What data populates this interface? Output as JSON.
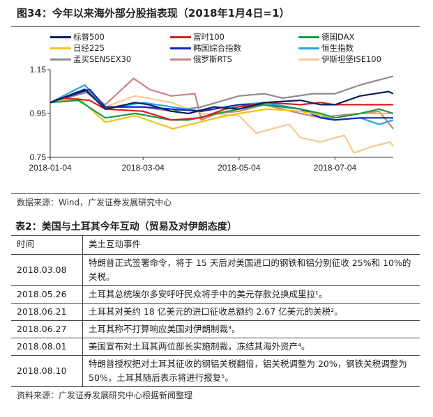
{
  "figure": {
    "title": "图34：今年以来海外部分股指表现（2018年1月4日=1）",
    "source": "数据来源：Wind，广发证券发展研究中心"
  },
  "chart_data": {
    "type": "line",
    "title": "今年以来海外部分股指表现（2018年1月4日=1）",
    "xlabel": "",
    "ylabel": "",
    "x_ticks": [
      "2018-01-04",
      "2018-03-04",
      "2018-05-04",
      "2018-07-04"
    ],
    "y_ticks": [
      "0.75",
      "0.95",
      "1.15"
    ],
    "ylim": [
      0.75,
      1.15
    ],
    "xlim": [
      "2018-01-04",
      "2018-08-10"
    ],
    "grid": false,
    "legend_position": "top",
    "series": [
      {
        "name": "标普500",
        "color": "#0b1f5c",
        "points": [
          [
            "2018-01-04",
            1.0
          ],
          [
            "2018-01-26",
            1.06
          ],
          [
            "2018-02-08",
            0.97
          ],
          [
            "2018-02-27",
            1.0
          ],
          [
            "2018-03-08",
            0.99
          ],
          [
            "2018-03-22",
            0.96
          ],
          [
            "2018-04-02",
            0.95
          ],
          [
            "2018-04-18",
            0.98
          ],
          [
            "2018-05-04",
            0.97
          ],
          [
            "2018-05-20",
            1.0
          ],
          [
            "2018-06-12",
            1.01
          ],
          [
            "2018-06-25",
            0.99
          ],
          [
            "2018-07-04",
            0.99
          ],
          [
            "2018-07-20",
            1.03
          ],
          [
            "2018-08-07",
            1.05
          ],
          [
            "2018-08-10",
            1.04
          ]
        ]
      },
      {
        "name": "富时100",
        "color": "#e01b1b",
        "points": [
          [
            "2018-01-04",
            1.0
          ],
          [
            "2018-01-12",
            1.02
          ],
          [
            "2018-01-29",
            1.01
          ],
          [
            "2018-02-08",
            0.97
          ],
          [
            "2018-03-04",
            0.96
          ],
          [
            "2018-03-22",
            0.92
          ],
          [
            "2018-04-10",
            0.93
          ],
          [
            "2018-04-25",
            0.97
          ],
          [
            "2018-05-04",
            0.98
          ],
          [
            "2018-05-22",
            1.0
          ],
          [
            "2018-06-12",
            0.99
          ],
          [
            "2018-06-25",
            1.0
          ],
          [
            "2018-07-04",
            0.99
          ],
          [
            "2018-07-20",
            0.99
          ],
          [
            "2018-08-10",
            0.99
          ]
        ]
      },
      {
        "name": "德国DAX",
        "color": "#1a9a4a",
        "points": [
          [
            "2018-01-04",
            1.0
          ],
          [
            "2018-01-22",
            1.01
          ],
          [
            "2018-02-08",
            0.93
          ],
          [
            "2018-02-27",
            0.95
          ],
          [
            "2018-03-22",
            0.92
          ],
          [
            "2018-04-02",
            0.92
          ],
          [
            "2018-04-20",
            0.95
          ],
          [
            "2018-05-04",
            0.97
          ],
          [
            "2018-05-20",
            0.99
          ],
          [
            "2018-06-12",
            0.97
          ],
          [
            "2018-06-25",
            0.95
          ],
          [
            "2018-07-04",
            0.93
          ],
          [
            "2018-07-20",
            0.95
          ],
          [
            "2018-08-01",
            0.97
          ],
          [
            "2018-08-10",
            0.95
          ]
        ]
      },
      {
        "name": "日经225",
        "color": "#f2c318",
        "points": [
          [
            "2018-01-04",
            1.0
          ],
          [
            "2018-01-22",
            1.02
          ],
          [
            "2018-02-08",
            0.91
          ],
          [
            "2018-02-27",
            0.94
          ],
          [
            "2018-03-23",
            0.88
          ],
          [
            "2018-04-20",
            0.93
          ],
          [
            "2018-05-04",
            0.95
          ],
          [
            "2018-05-22",
            0.97
          ],
          [
            "2018-06-12",
            0.96
          ],
          [
            "2018-07-04",
            0.93
          ],
          [
            "2018-07-20",
            0.95
          ],
          [
            "2018-08-10",
            0.95
          ]
        ]
      },
      {
        "name": "韩国综合指数",
        "color": "#1326b8",
        "points": [
          [
            "2018-01-04",
            1.0
          ],
          [
            "2018-01-29",
            1.06
          ],
          [
            "2018-02-08",
            0.98
          ],
          [
            "2018-03-04",
            0.98
          ],
          [
            "2018-03-22",
            0.97
          ],
          [
            "2018-04-10",
            0.96
          ],
          [
            "2018-05-04",
            0.99
          ],
          [
            "2018-05-20",
            0.99
          ],
          [
            "2018-06-12",
            0.97
          ],
          [
            "2018-06-25",
            0.93
          ],
          [
            "2018-07-04",
            0.92
          ],
          [
            "2018-07-20",
            0.93
          ],
          [
            "2018-08-10",
            0.93
          ]
        ]
      },
      {
        "name": "恒生指数",
        "color": "#1ea6e8",
        "points": [
          [
            "2018-01-04",
            1.0
          ],
          [
            "2018-01-26",
            1.08
          ],
          [
            "2018-02-08",
            0.97
          ],
          [
            "2018-03-04",
            1.0
          ],
          [
            "2018-03-22",
            0.98
          ],
          [
            "2018-04-10",
            0.96
          ],
          [
            "2018-05-04",
            0.99
          ],
          [
            "2018-05-20",
            1.0
          ],
          [
            "2018-06-12",
            0.97
          ],
          [
            "2018-06-25",
            0.94
          ],
          [
            "2018-07-04",
            0.92
          ],
          [
            "2018-07-20",
            0.93
          ],
          [
            "2018-08-01",
            0.9
          ],
          [
            "2018-08-10",
            0.92
          ]
        ]
      },
      {
        "name": "孟买SENSEX30",
        "color": "#8c8c96",
        "points": [
          [
            "2018-01-04",
            1.0
          ],
          [
            "2018-01-29",
            1.05
          ],
          [
            "2018-02-08",
            0.98
          ],
          [
            "2018-03-04",
            0.98
          ],
          [
            "2018-03-22",
            0.96
          ],
          [
            "2018-04-10",
            0.98
          ],
          [
            "2018-05-04",
            1.03
          ],
          [
            "2018-05-20",
            1.04
          ],
          [
            "2018-06-01",
            1.02
          ],
          [
            "2018-06-20",
            1.04
          ],
          [
            "2018-07-04",
            1.04
          ],
          [
            "2018-07-20",
            1.08
          ],
          [
            "2018-08-10",
            1.12
          ]
        ]
      },
      {
        "name": "俄罗斯RTS",
        "color": "#c98484",
        "points": [
          [
            "2018-01-04",
            1.0
          ],
          [
            "2018-01-26",
            1.05
          ],
          [
            "2018-02-08",
            0.99
          ],
          [
            "2018-02-26",
            1.11
          ],
          [
            "2018-03-08",
            1.06
          ],
          [
            "2018-03-22",
            1.03
          ],
          [
            "2018-04-06",
            1.04
          ],
          [
            "2018-04-10",
            0.92
          ],
          [
            "2018-04-20",
            0.95
          ],
          [
            "2018-05-04",
            0.96
          ],
          [
            "2018-05-20",
            0.99
          ],
          [
            "2018-06-12",
            0.95
          ],
          [
            "2018-06-25",
            0.93
          ],
          [
            "2018-07-04",
            0.94
          ],
          [
            "2018-07-20",
            0.95
          ],
          [
            "2018-08-01",
            0.96
          ],
          [
            "2018-08-10",
            0.88
          ]
        ]
      },
      {
        "name": "伊斯坦堡ISE100",
        "color": "#f3c98e",
        "points": [
          [
            "2018-01-04",
            1.0
          ],
          [
            "2018-01-26",
            1.05
          ],
          [
            "2018-02-08",
            0.98
          ],
          [
            "2018-02-27",
            1.03
          ],
          [
            "2018-03-22",
            1.0
          ],
          [
            "2018-04-10",
            0.95
          ],
          [
            "2018-05-04",
            0.94
          ],
          [
            "2018-05-15",
            0.86
          ],
          [
            "2018-05-25",
            0.88
          ],
          [
            "2018-06-05",
            0.9
          ],
          [
            "2018-06-12",
            0.84
          ],
          [
            "2018-06-25",
            0.82
          ],
          [
            "2018-07-04",
            0.84
          ],
          [
            "2018-07-10",
            0.85
          ],
          [
            "2018-07-16",
            0.77
          ],
          [
            "2018-07-28",
            0.8
          ],
          [
            "2018-08-08",
            0.82
          ],
          [
            "2018-08-10",
            0.8
          ]
        ]
      }
    ]
  },
  "table": {
    "title": "表2：美国与土耳其今年互动（贸易及对伊朗态度）",
    "headers": [
      "时间",
      "美土互动事件"
    ],
    "rows": [
      {
        "date": "2018.03.08",
        "event": "特朗普正式签署命令，将于 15 天后对美国进口的钢铁和铝分别征收 25%和 10%的关税。"
      },
      {
        "date": "2018.05.26",
        "event": "土耳其总统埃尔多安呼吁民众将手中的美元存款兑换成里拉¹。"
      },
      {
        "date": "2018.06.21",
        "event": "土耳其对美约 18 亿美元的进口征收总额约 2.67 亿美元的关税²。"
      },
      {
        "date": "2018.06.27",
        "event": "土耳其称不打算响应美国对伊朗制裁³。"
      },
      {
        "date": "2018.08.01",
        "event": "美国宣布对土耳其两位部长实施制裁，冻结其海外资产⁴。"
      },
      {
        "date": "2018.08.10",
        "event": "特朗普授权把对土耳其征收的钢铝关税翻倍，铝关税调整为 20%，钢铁关税调整为 50%，土耳其随后表示将进行报复⁵。"
      }
    ],
    "source": "资料来源：广发证券发展研究中心根据新闻整理"
  }
}
